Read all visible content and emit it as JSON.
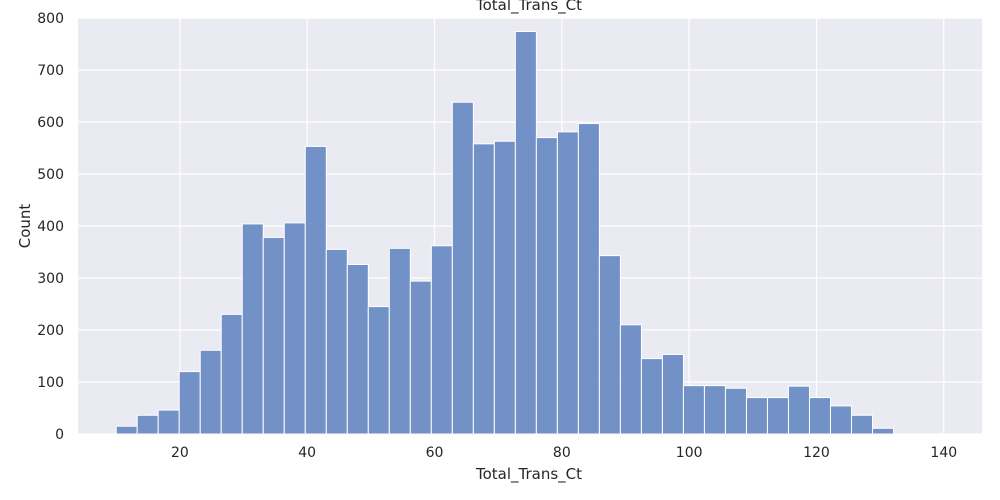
{
  "chart_data": {
    "type": "bar",
    "subtype": "histogram",
    "title": "Total_Trans_Ct",
    "xlabel": "Total_Trans_Ct",
    "ylabel": "Count",
    "xlim": [
      4,
      146
    ],
    "ylim": [
      0,
      800
    ],
    "xticks": [
      20,
      40,
      60,
      80,
      100,
      120,
      140
    ],
    "yticks": [
      0,
      100,
      200,
      300,
      400,
      500,
      600,
      700,
      800
    ],
    "grid": true,
    "background_color": "#eaeaf2",
    "bar_color": "#6a8cc4",
    "bin_width": 3.3,
    "bin_start": 10,
    "counts": [
      15,
      36,
      46,
      120,
      161,
      230,
      404,
      378,
      406,
      553,
      355,
      326,
      245,
      357,
      294,
      362,
      638,
      558,
      563,
      774,
      570,
      581,
      597,
      343,
      210,
      145,
      153,
      93,
      93,
      88,
      70,
      70,
      92,
      70,
      54,
      36,
      11
    ]
  }
}
